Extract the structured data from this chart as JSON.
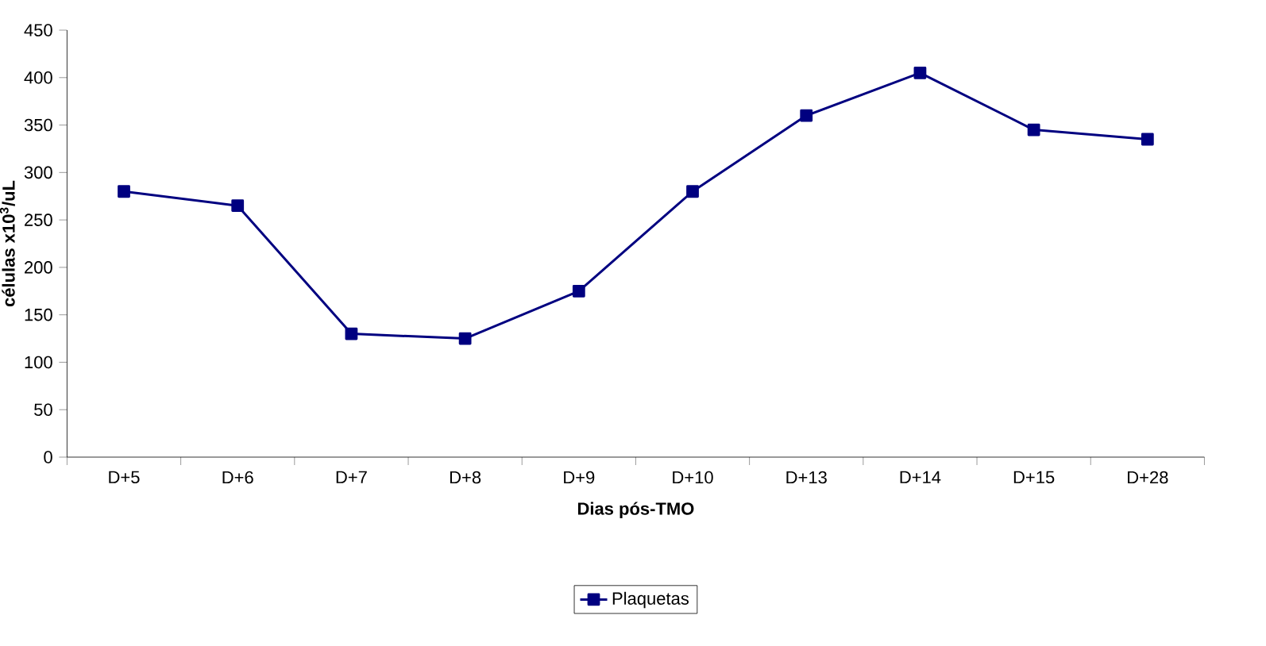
{
  "chart_data": {
    "type": "line",
    "xlabel": "Dias pós-TMO",
    "ylabel": "células x10$^{3}$/uL",
    "categories": [
      "D+5",
      "D+6",
      "D+7",
      "D+8",
      "D+9",
      "D+10",
      "D+13",
      "D+14",
      "D+15",
      "D+28"
    ],
    "series": [
      {
        "name": "Plaquetas",
        "color": "#000080",
        "values": [
          280,
          265,
          130,
          125,
          175,
          280,
          360,
          405,
          345,
          335
        ]
      }
    ],
    "ylim": [
      0,
      450
    ],
    "yticks": [
      0,
      50,
      100,
      150,
      200,
      250,
      300,
      350,
      400,
      450
    ],
    "marker": "square",
    "line_style": "solid",
    "legend": "bottom"
  }
}
